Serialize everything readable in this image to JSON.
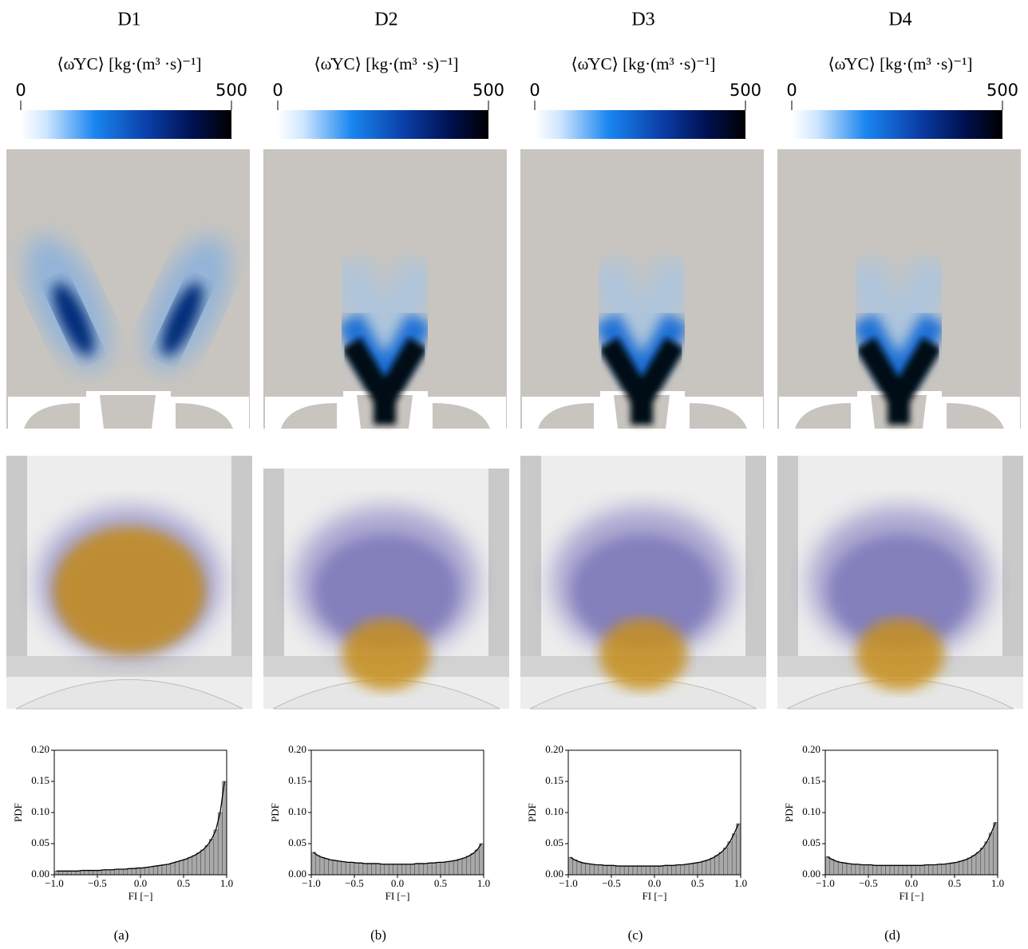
{
  "chart_data": [
    {
      "type": "histogram",
      "title": "D1",
      "colorbar": {
        "label": "⟨ω̇YC⟩ [kg·(m³ ·s)⁻¹]",
        "lim": [
          0,
          500
        ],
        "ticks": [
          0,
          500
        ]
      },
      "bins": [
        -1,
        -0.95,
        -0.9,
        -0.85,
        -0.8,
        -0.75,
        -0.7,
        -0.65,
        -0.6,
        -0.55,
        -0.5,
        -0.45,
        -0.4,
        -0.35,
        -0.3,
        -0.25,
        -0.2,
        -0.15,
        -0.1,
        -0.05,
        0,
        0.05,
        0.1,
        0.15,
        0.2,
        0.25,
        0.3,
        0.35,
        0.4,
        0.45,
        0.5,
        0.55,
        0.6,
        0.65,
        0.7,
        0.75,
        0.8,
        0.85,
        0.9,
        0.95,
        1
      ],
      "values": [
        0.006,
        0.006,
        0.006,
        0.006,
        0.006,
        0.006,
        0.007,
        0.007,
        0.007,
        0.007,
        0.007,
        0.008,
        0.008,
        0.008,
        0.009,
        0.009,
        0.009,
        0.01,
        0.01,
        0.011,
        0.011,
        0.012,
        0.013,
        0.014,
        0.015,
        0.016,
        0.017,
        0.019,
        0.021,
        0.023,
        0.025,
        0.028,
        0.031,
        0.035,
        0.04,
        0.047,
        0.057,
        0.072,
        0.1,
        0.15
      ],
      "color": "#a9a9a9",
      "xlim": [
        -1,
        1
      ],
      "ylim": [
        0,
        0.2
      ],
      "xticks": [
        {
          "value": -1,
          "label": "−1.0"
        },
        {
          "value": -0.5,
          "label": "−0.5"
        },
        {
          "value": 0,
          "label": "0.0"
        },
        {
          "value": 0.5,
          "label": "0.5"
        },
        {
          "value": 1,
          "label": "1.0"
        }
      ],
      "yticks": [
        {
          "value": 0,
          "label": "0.00"
        },
        {
          "value": 0.05,
          "label": "0.05"
        },
        {
          "value": 0.1,
          "label": "0.10"
        },
        {
          "value": 0.15,
          "label": "0.15"
        },
        {
          "value": 0.2,
          "label": "0.20"
        }
      ],
      "xlabel": "FI [−]",
      "ylabel": "PDF",
      "caption": "(a)"
    },
    {
      "type": "histogram",
      "title": "D2",
      "colorbar": {
        "label": "⟨ω̇YC⟩ [kg·(m³ ·s)⁻¹]",
        "lim": [
          0,
          500
        ],
        "ticks": [
          0,
          500
        ]
      },
      "bins": [
        -1,
        -0.95,
        -0.9,
        -0.85,
        -0.8,
        -0.75,
        -0.7,
        -0.65,
        -0.6,
        -0.55,
        -0.5,
        -0.45,
        -0.4,
        -0.35,
        -0.3,
        -0.25,
        -0.2,
        -0.15,
        -0.1,
        -0.05,
        0,
        0.05,
        0.1,
        0.15,
        0.2,
        0.25,
        0.3,
        0.35,
        0.4,
        0.45,
        0.5,
        0.55,
        0.6,
        0.65,
        0.7,
        0.75,
        0.8,
        0.85,
        0.9,
        0.95,
        1
      ],
      "values": [
        0.036,
        0.031,
        0.028,
        0.026,
        0.024,
        0.023,
        0.022,
        0.021,
        0.02,
        0.02,
        0.019,
        0.019,
        0.018,
        0.018,
        0.018,
        0.018,
        0.017,
        0.017,
        0.017,
        0.017,
        0.017,
        0.017,
        0.017,
        0.017,
        0.018,
        0.018,
        0.018,
        0.019,
        0.019,
        0.02,
        0.02,
        0.021,
        0.022,
        0.023,
        0.025,
        0.027,
        0.03,
        0.034,
        0.04,
        0.05
      ],
      "color": "#a9a9a9",
      "xlim": [
        -1,
        1
      ],
      "ylim": [
        0,
        0.2
      ],
      "xticks": [
        {
          "value": -1,
          "label": "−1.0"
        },
        {
          "value": -0.5,
          "label": "−0.5"
        },
        {
          "value": 0,
          "label": "0.0"
        },
        {
          "value": 0.5,
          "label": "0.5"
        },
        {
          "value": 1,
          "label": "1.0"
        }
      ],
      "yticks": [
        {
          "value": 0,
          "label": "0.00"
        },
        {
          "value": 0.05,
          "label": "0.05"
        },
        {
          "value": 0.1,
          "label": "0.10"
        },
        {
          "value": 0.15,
          "label": "0.15"
        },
        {
          "value": 0.2,
          "label": "0.20"
        }
      ],
      "xlabel": "FI [−]",
      "ylabel": "PDF",
      "caption": "(b)"
    },
    {
      "type": "histogram",
      "title": "D3",
      "colorbar": {
        "label": "⟨ω̇YC⟩ [kg·(m³ ·s)⁻¹]",
        "lim": [
          0,
          500
        ],
        "ticks": [
          0,
          500
        ]
      },
      "bins": [
        -1,
        -0.95,
        -0.9,
        -0.85,
        -0.8,
        -0.75,
        -0.7,
        -0.65,
        -0.6,
        -0.55,
        -0.5,
        -0.45,
        -0.4,
        -0.35,
        -0.3,
        -0.25,
        -0.2,
        -0.15,
        -0.1,
        -0.05,
        0,
        0.05,
        0.1,
        0.15,
        0.2,
        0.25,
        0.3,
        0.35,
        0.4,
        0.45,
        0.5,
        0.55,
        0.6,
        0.65,
        0.7,
        0.75,
        0.8,
        0.85,
        0.9,
        0.95,
        1
      ],
      "values": [
        0.028,
        0.024,
        0.021,
        0.019,
        0.018,
        0.017,
        0.016,
        0.016,
        0.015,
        0.015,
        0.015,
        0.014,
        0.014,
        0.014,
        0.014,
        0.014,
        0.014,
        0.014,
        0.014,
        0.014,
        0.014,
        0.014,
        0.015,
        0.015,
        0.015,
        0.016,
        0.016,
        0.017,
        0.018,
        0.019,
        0.02,
        0.022,
        0.024,
        0.027,
        0.031,
        0.036,
        0.043,
        0.053,
        0.066,
        0.082
      ],
      "color": "#a9a9a9",
      "xlim": [
        -1,
        1
      ],
      "ylim": [
        0,
        0.2
      ],
      "xticks": [
        {
          "value": -1,
          "label": "−1.0"
        },
        {
          "value": -0.5,
          "label": "−0.5"
        },
        {
          "value": 0,
          "label": "0.0"
        },
        {
          "value": 0.5,
          "label": "0.5"
        },
        {
          "value": 1,
          "label": "1.0"
        }
      ],
      "yticks": [
        {
          "value": 0,
          "label": "0.00"
        },
        {
          "value": 0.05,
          "label": "0.05"
        },
        {
          "value": 0.1,
          "label": "0.10"
        },
        {
          "value": 0.15,
          "label": "0.15"
        },
        {
          "value": 0.2,
          "label": "0.20"
        }
      ],
      "xlabel": "FI [−]",
      "ylabel": "PDF",
      "caption": "(c)"
    },
    {
      "type": "histogram",
      "title": "D4",
      "colorbar": {
        "label": "⟨ω̇YC⟩ [kg·(m³ ·s)⁻¹]",
        "lim": [
          0,
          500
        ],
        "ticks": [
          0,
          500
        ]
      },
      "bins": [
        -1,
        -0.95,
        -0.9,
        -0.85,
        -0.8,
        -0.75,
        -0.7,
        -0.65,
        -0.6,
        -0.55,
        -0.5,
        -0.45,
        -0.4,
        -0.35,
        -0.3,
        -0.25,
        -0.2,
        -0.15,
        -0.1,
        -0.05,
        0,
        0.05,
        0.1,
        0.15,
        0.2,
        0.25,
        0.3,
        0.35,
        0.4,
        0.45,
        0.5,
        0.55,
        0.6,
        0.65,
        0.7,
        0.75,
        0.8,
        0.85,
        0.9,
        0.95,
        1
      ],
      "values": [
        0.029,
        0.025,
        0.022,
        0.02,
        0.019,
        0.018,
        0.017,
        0.017,
        0.016,
        0.016,
        0.016,
        0.015,
        0.015,
        0.015,
        0.015,
        0.015,
        0.015,
        0.015,
        0.015,
        0.015,
        0.015,
        0.015,
        0.015,
        0.016,
        0.016,
        0.016,
        0.017,
        0.017,
        0.018,
        0.019,
        0.02,
        0.022,
        0.024,
        0.027,
        0.031,
        0.036,
        0.043,
        0.053,
        0.067,
        0.084
      ],
      "color": "#a9a9a9",
      "xlim": [
        -1,
        1
      ],
      "ylim": [
        0,
        0.2
      ],
      "xticks": [
        {
          "value": -1,
          "label": "−1.0"
        },
        {
          "value": -0.5,
          "label": "−0.5"
        },
        {
          "value": 0,
          "label": "0.0"
        },
        {
          "value": 0.5,
          "label": "0.5"
        },
        {
          "value": 1,
          "label": "1.0"
        }
      ],
      "yticks": [
        {
          "value": 0,
          "label": "0.00"
        },
        {
          "value": 0.05,
          "label": "0.05"
        },
        {
          "value": 0.1,
          "label": "0.10"
        },
        {
          "value": 0.15,
          "label": "0.15"
        },
        {
          "value": 0.2,
          "label": "0.20"
        }
      ],
      "xlabel": "FI [−]",
      "ylabel": "PDF",
      "caption": "(d)"
    }
  ]
}
